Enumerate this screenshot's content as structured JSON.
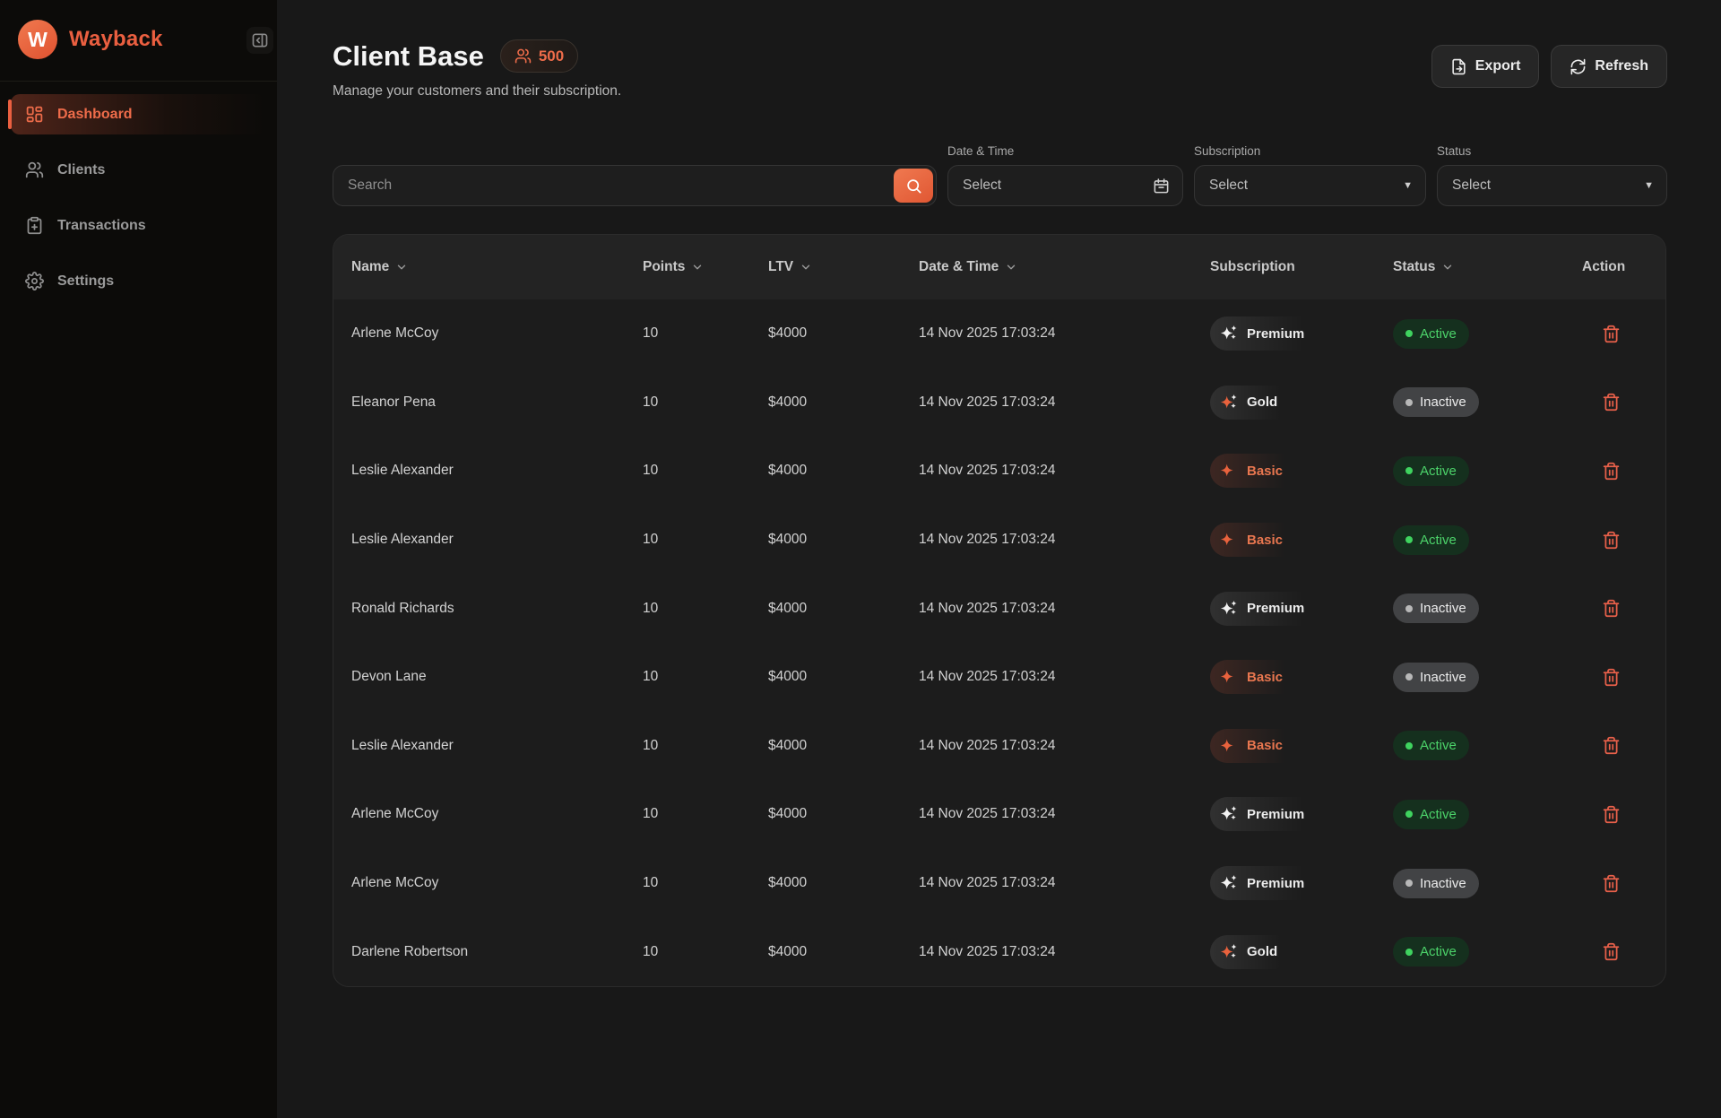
{
  "app": {
    "brand": "Wayback"
  },
  "sidebar": {
    "items": [
      {
        "label": "Dashboard",
        "icon": "dashboard-grid-icon",
        "active": true
      },
      {
        "label": "Clients",
        "icon": "users-icon",
        "active": false
      },
      {
        "label": "Transactions",
        "icon": "clipboard-icon",
        "active": false
      },
      {
        "label": "Settings",
        "icon": "gear-icon",
        "active": false
      }
    ]
  },
  "header": {
    "title": "Client Base",
    "count_badge": "500",
    "subtitle": "Manage your customers and their subscription.",
    "export_label": "Export",
    "refresh_label": "Refresh"
  },
  "filters": {
    "search_placeholder": "Search",
    "date_label": "Date & Time",
    "date_value": "Select",
    "subscription_label": "Subscription",
    "subscription_value": "Select",
    "status_label": "Status",
    "status_value": "Select"
  },
  "table": {
    "columns": [
      {
        "label": "Name",
        "sortable": true
      },
      {
        "label": "Points",
        "sortable": true
      },
      {
        "label": "LTV",
        "sortable": true
      },
      {
        "label": "Date & Time",
        "sortable": true
      },
      {
        "label": "Subscription",
        "sortable": false
      },
      {
        "label": "Status",
        "sortable": true
      },
      {
        "label": "Action",
        "sortable": false
      }
    ],
    "rows": [
      {
        "name": "Arlene McCoy",
        "points": "10",
        "ltv": "$4000",
        "datetime": "14 Nov 2025 17:03:24",
        "subscription": "Premium",
        "status": "Active"
      },
      {
        "name": "Eleanor Pena",
        "points": "10",
        "ltv": "$4000",
        "datetime": "14 Nov 2025 17:03:24",
        "subscription": "Gold",
        "status": "Inactive"
      },
      {
        "name": "Leslie Alexander",
        "points": "10",
        "ltv": "$4000",
        "datetime": "14 Nov 2025 17:03:24",
        "subscription": "Basic",
        "status": "Active"
      },
      {
        "name": "Leslie Alexander",
        "points": "10",
        "ltv": "$4000",
        "datetime": "14 Nov 2025 17:03:24",
        "subscription": "Basic",
        "status": "Active"
      },
      {
        "name": "Ronald Richards",
        "points": "10",
        "ltv": "$4000",
        "datetime": "14 Nov 2025 17:03:24",
        "subscription": "Premium",
        "status": "Inactive"
      },
      {
        "name": "Devon Lane",
        "points": "10",
        "ltv": "$4000",
        "datetime": "14 Nov 2025 17:03:24",
        "subscription": "Basic",
        "status": "Inactive"
      },
      {
        "name": "Leslie Alexander",
        "points": "10",
        "ltv": "$4000",
        "datetime": "14 Nov 2025 17:03:24",
        "subscription": "Basic",
        "status": "Active"
      },
      {
        "name": "Arlene McCoy",
        "points": "10",
        "ltv": "$4000",
        "datetime": "14 Nov 2025 17:03:24",
        "subscription": "Premium",
        "status": "Active"
      },
      {
        "name": "Arlene McCoy",
        "points": "10",
        "ltv": "$4000",
        "datetime": "14 Nov 2025 17:03:24",
        "subscription": "Premium",
        "status": "Inactive"
      },
      {
        "name": "Darlene Robertson",
        "points": "10",
        "ltv": "$4000",
        "datetime": "14 Nov 2025 17:03:24",
        "subscription": "Gold",
        "status": "Active"
      }
    ]
  },
  "colors": {
    "accent_orange": "#ea5f40",
    "active_green": "#4cd36a",
    "inactive_gray": "#424345",
    "sidebar_bg": "#0c0b09",
    "main_bg": "#181818",
    "card_bg": "#1c1c1c"
  }
}
